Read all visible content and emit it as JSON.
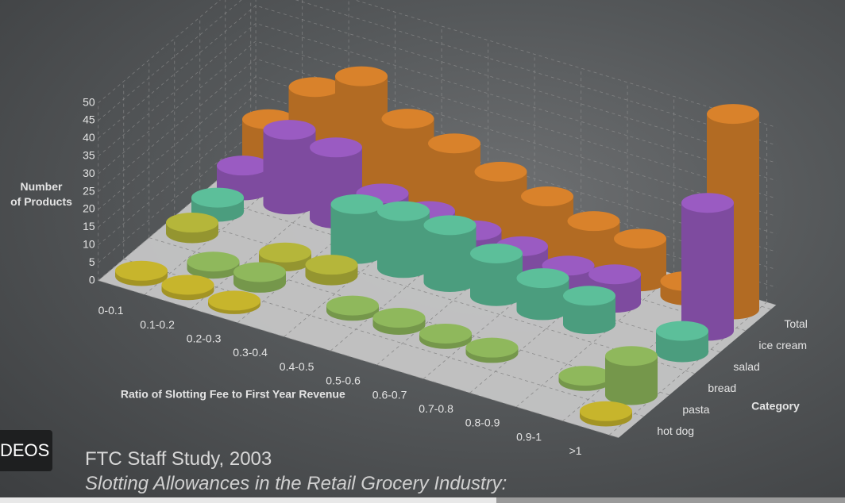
{
  "chart_data": {
    "type": "bar3d",
    "categories": [
      "0-0.1",
      "0.1-0.2",
      "0.2-0.3",
      "0.3-0.4",
      "0.4-0.5",
      "0.5-0.6",
      "0.6-0.7",
      "0.7-0.8",
      "0.8-0.9",
      "0.9-1",
      ">1"
    ],
    "series": [
      {
        "name": "hot dog",
        "color": "#c7b52c",
        "values": [
          1.5,
          1.5,
          1,
          null,
          null,
          null,
          null,
          null,
          null,
          null,
          1.5
        ]
      },
      {
        "name": "pasta",
        "color": "#8fb85c",
        "values": [
          null,
          2,
          3,
          null,
          1.5,
          2,
          1.5,
          1.5,
          null,
          1.5,
          11
        ]
      },
      {
        "name": "bread",
        "color": "#b5b63a",
        "values": [
          3,
          null,
          2.5,
          3,
          null,
          null,
          null,
          null,
          null,
          null,
          null
        ]
      },
      {
        "name": "salad",
        "color": "#5cbf9a",
        "values": [
          4,
          null,
          null,
          14,
          16,
          16,
          12,
          9,
          8,
          null,
          6
        ]
      },
      {
        "name": "ice cream",
        "color": "#9a5bc2",
        "values": [
          7,
          21,
          20,
          11,
          10,
          8.5,
          8,
          6.5,
          8,
          null,
          36
        ]
      },
      {
        "name": "Total",
        "color": "#d9822b",
        "values": [
          14,
          27,
          34,
          26,
          23,
          19,
          16,
          13,
          12,
          4,
          55
        ]
      }
    ],
    "ylim": [
      0,
      50
    ],
    "yticks": [
      0,
      5,
      10,
      15,
      20,
      25,
      30,
      35,
      40,
      45,
      50
    ],
    "grid": true,
    "ylabel": "Number\nof Products",
    "xlabel": "Ratio of Slotting Fee to First Year Revenue",
    "zlabel": "Category"
  },
  "footer": {
    "source": "FTC Staff Study, 2003",
    "subtitle": "Slotting Allowances in the Retail Grocery Industry:"
  },
  "button": "DEOS"
}
